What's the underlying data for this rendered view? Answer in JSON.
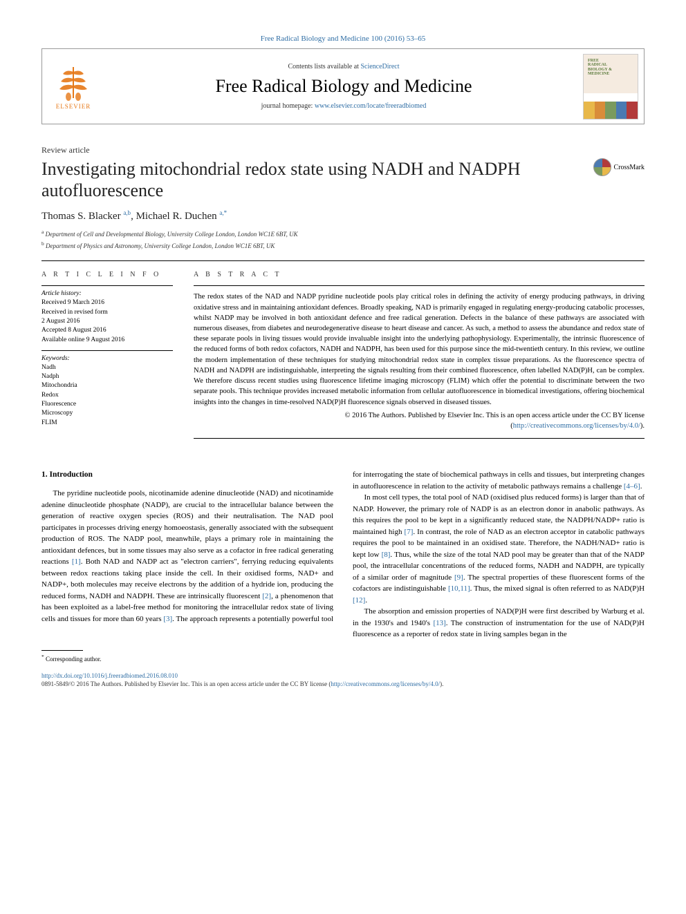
{
  "header": {
    "top_link_text": "Free Radical Biology and Medicine 100 (2016) 53–65",
    "contents_prefix": "Contents lists available at ",
    "contents_link": "ScienceDirect",
    "journal_title": "Free Radical Biology and Medicine",
    "homepage_prefix": "journal homepage: ",
    "homepage_link": "www.elsevier.com/locate/freeradbiomed",
    "elsevier_label": "ELSEVIER",
    "cover_title": "FREE\nRADICAL\nBIOLOGY &\nMEDICINE",
    "cover_bar_colors": [
      "#e8b84a",
      "#d98c3a",
      "#7a9a5e",
      "#4a7ab2",
      "#b23a3a"
    ]
  },
  "crossmark_label": "CrossMark",
  "article": {
    "type": "Review article",
    "title": "Investigating mitochondrial redox state using NADH and NADPH autofluorescence",
    "authors_html": "Thomas S. Blacker <sup>a,b</sup>, Michael R. Duchen <sup>a,*</sup>",
    "affiliations": [
      {
        "sup": "a",
        "text": "Department of Cell and Developmental Biology, University College London, London WC1E 6BT, UK"
      },
      {
        "sup": "b",
        "text": "Department of Physics and Astronomy, University College London, London WC1E 6BT, UK"
      }
    ]
  },
  "info": {
    "heading": "A R T I C L E  I N F O",
    "history_label": "Article history:",
    "history": [
      "Received 9 March 2016",
      "Received in revised form",
      "2 August 2016",
      "Accepted 8 August 2016",
      "Available online 9 August 2016"
    ],
    "keywords_label": "Keywords:",
    "keywords": [
      "Nadh",
      "Nadph",
      "Mitochondria",
      "Redox",
      "Fluorescence",
      "Microscopy",
      "FLIM"
    ]
  },
  "abstract": {
    "heading": "A B S T R A C T",
    "body": "The redox states of the NAD and NADP pyridine nucleotide pools play critical roles in defining the activity of energy producing pathways, in driving oxidative stress and in maintaining antioxidant defences. Broadly speaking, NAD is primarily engaged in regulating energy-producing catabolic processes, whilst NADP may be involved in both antioxidant defence and free radical generation. Defects in the balance of these pathways are associated with numerous diseases, from diabetes and neurodegenerative disease to heart disease and cancer. As such, a method to assess the abundance and redox state of these separate pools in living tissues would provide invaluable insight into the underlying pathophysiology. Experimentally, the intrinsic fluorescence of the reduced forms of both redox cofactors, NADH and NADPH, has been used for this purpose since the mid-twentieth century. In this review, we outline the modern implementation of these techniques for studying mitochondrial redox state in complex tissue preparations. As the fluorescence spectra of NADH and NADPH are indistinguishable, interpreting the signals resulting from their combined fluorescence, often labelled NAD(P)H, can be complex. We therefore discuss recent studies using fluorescence lifetime imaging microscopy (FLIM) which offer the potential to discriminate between the two separate pools. This technique provides increased metabolic information from cellular autofluorescence in biomedical investigations, offering biochemical insights into the changes in time-resolved NAD(P)H fluorescence signals observed in diseased tissues.",
    "copyright_line": "© 2016 The Authors. Published by Elsevier Inc. This is an open access article under the CC BY license",
    "copyright_link_prefix": "(",
    "copyright_link": "http://creativecommons.org/licenses/by/4.0/",
    "copyright_link_suffix": ")."
  },
  "body": {
    "section_heading": "1.  Introduction",
    "p1_a": "The pyridine nucleotide pools, nicotinamide adenine dinucleotide (NAD) and nicotinamide adenine dinucleotide phosphate (NADP), are crucial to the intracellular balance between the generation of reactive oxygen species (ROS) and their neutralisation. The NAD pool participates in processes driving energy homoeostasis, generally associated with the subsequent production of ROS. The NADP pool, meanwhile, plays a primary role in maintaining the antioxidant defences, but in some tissues may also serve as a cofactor in free radical generating reactions ",
    "r1": "[1]",
    "p1_b": ". Both NAD and NADP act as \"electron carriers\", ferrying reducing equivalents between redox reactions taking place inside the cell. In their oxidised forms, NAD+ and NADP+, both molecules may receive electrons by the addition of a hydride ion, producing the reduced forms, NADH and NADPH. These are intrinsically fluorescent ",
    "r2": "[2]",
    "p1_c": ", a phenomenon that has been exploited as a label-free method for monitoring the intracellular redox state of living cells and tissues for more than 60 years ",
    "r3": "[3]",
    "p1_d": ". The approach represents a potentially powerful tool for interrogating the state of biochemical pathways in cells and tissues, but interpreting changes in autofluorescence in relation to the activity of metabolic pathways remains a challenge ",
    "r46": "[4–6]",
    "p1_e": ".",
    "p2_a": "In most cell types, the total pool of NAD (oxidised plus reduced forms) is larger than that of NADP. However, the primary role of NADP is as an electron donor in anabolic pathways. As this requires the pool to be kept in a significantly reduced state, the NADPH/NADP+ ratio is maintained high ",
    "r7": "[7]",
    "p2_b": ". In contrast, the role of NAD as an electron acceptor in catabolic pathways requires the pool to be maintained in an oxidised state. Therefore, the NADH/NAD+ ratio is kept low ",
    "r8": "[8]",
    "p2_c": ". Thus, while the size of the total NAD pool may be greater than that of the NADP pool, the intracellular concentrations of the reduced forms, NADH and NADPH, are typically of a similar order of magnitude ",
    "r9": "[9]",
    "p2_d": ". The spectral properties of these fluorescent forms of the cofactors are indistinguishable ",
    "r1011": "[10,11]",
    "p2_e": ". Thus, the mixed signal is often referred to as NAD(P)H ",
    "r12": "[12]",
    "p2_f": ".",
    "p3_a": "The absorption and emission properties of NAD(P)H were first described by Warburg et al. in the 1930's and 1940's ",
    "r13": "[13]",
    "p3_b": ". The construction of instrumentation for the use of NAD(P)H fluorescence as a reporter of redox state in living samples began in the"
  },
  "footnote": {
    "marker": "*",
    "text": "Corresponding author."
  },
  "bottom": {
    "doi": "http://dx.doi.org/10.1016/j.freeradbiomed.2016.08.010",
    "issn_line_a": "0891-5849/© 2016 The Authors. Published by Elsevier Inc. This is an open access article under the CC BY license (",
    "issn_link": "http://creativecommons.org/licenses/by/4.0/",
    "issn_line_b": ")."
  },
  "colors": {
    "link": "#2e6da4",
    "elsevier_orange": "#e67817",
    "text": "#000000",
    "rule": "#000000"
  }
}
